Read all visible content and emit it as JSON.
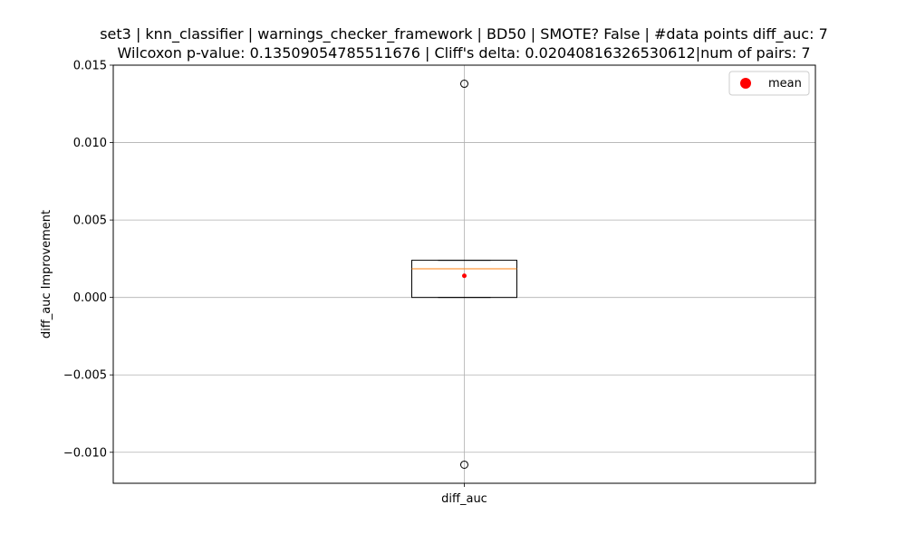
{
  "chart_data": {
    "type": "box",
    "title": "set3 | knn_classifier | warnings_checker_framework | BD50 | SMOTE? False | #data points diff_auc: 7",
    "subtitle": "Wilcoxon p-value: 0.13509054785511676 | Cliff's delta: 0.02040816326530612|num of pairs: 7",
    "xlabel": "",
    "ylabel": "diff_auc Improvement",
    "categories": [
      "diff_auc"
    ],
    "ylim": [
      -0.012,
      0.015
    ],
    "yticks": [
      -0.01,
      -0.005,
      0.0,
      0.005,
      0.01,
      0.015
    ],
    "ytick_labels": [
      "−0.010",
      "−0.005",
      "0.000",
      "0.005",
      "0.010",
      "0.015"
    ],
    "grid": true,
    "legend": {
      "placement": "top-right",
      "entries": [
        {
          "label": "mean",
          "color": "#ff0000",
          "marker": "circle"
        }
      ]
    },
    "boxes": [
      {
        "category": "diff_auc",
        "whisker_low": 0.0,
        "q1": 0.0,
        "median": 0.00185,
        "q3": 0.0024,
        "whisker_high": 0.0024,
        "mean": 0.0014,
        "outliers": [
          0.0138,
          -0.0108
        ]
      }
    ],
    "colors": {
      "box": "#000000",
      "median": "#ff7f0e",
      "mean": "#ff0000",
      "grid": "#b0b0b0"
    }
  }
}
